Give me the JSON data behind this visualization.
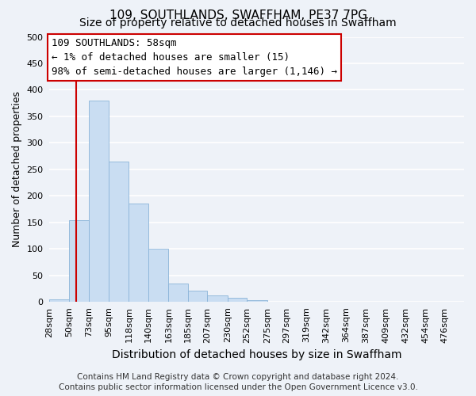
{
  "title": "109, SOUTHLANDS, SWAFFHAM, PE37 7PG",
  "subtitle": "Size of property relative to detached houses in Swaffham",
  "xlabel": "Distribution of detached houses by size in Swaffham",
  "ylabel": "Number of detached properties",
  "bar_values": [
    5,
    155,
    380,
    265,
    185,
    100,
    35,
    22,
    13,
    8,
    3,
    0,
    0,
    0,
    0,
    0,
    0,
    0,
    0,
    0
  ],
  "bar_labels": [
    "28sqm",
    "50sqm",
    "73sqm",
    "95sqm",
    "118sqm",
    "140sqm",
    "163sqm",
    "185sqm",
    "207sqm",
    "230sqm",
    "252sqm",
    "275sqm",
    "297sqm",
    "319sqm",
    "342sqm",
    "364sqm",
    "387sqm",
    "409sqm",
    "432sqm",
    "454sqm",
    "476sqm"
  ],
  "bin_edges": [
    28,
    50,
    73,
    95,
    118,
    140,
    163,
    185,
    207,
    230,
    252,
    275,
    297,
    319,
    342,
    364,
    387,
    409,
    432,
    454,
    476
  ],
  "bar_color": "#c9ddf2",
  "bar_edge_color": "#8ab4d8",
  "property_line_x": 58,
  "property_line_color": "#cc0000",
  "ylim": [
    0,
    500
  ],
  "yticks": [
    0,
    50,
    100,
    150,
    200,
    250,
    300,
    350,
    400,
    450,
    500
  ],
  "annotation_title": "109 SOUTHLANDS: 58sqm",
  "annotation_line1": "← 1% of detached houses are smaller (15)",
  "annotation_line2": "98% of semi-detached houses are larger (1,146) →",
  "annotation_box_color": "#ffffff",
  "annotation_box_edge_color": "#cc0000",
  "footer1": "Contains HM Land Registry data © Crown copyright and database right 2024.",
  "footer2": "Contains public sector information licensed under the Open Government Licence v3.0.",
  "background_color": "#eef2f8",
  "grid_color": "#ffffff",
  "title_fontsize": 11,
  "subtitle_fontsize": 10,
  "xlabel_fontsize": 10,
  "ylabel_fontsize": 9,
  "tick_fontsize": 8,
  "annotation_fontsize": 9,
  "footer_fontsize": 7.5
}
